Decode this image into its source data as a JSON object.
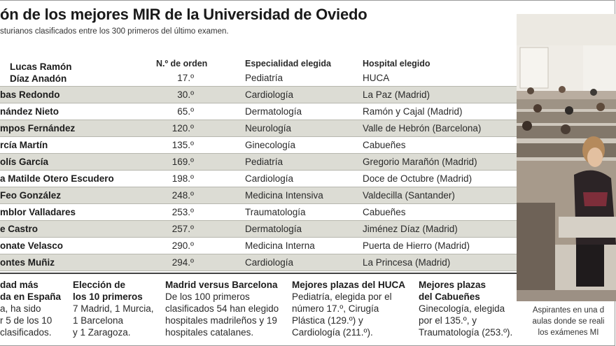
{
  "header": {
    "title": "ón de los mejores MIR de la Universidad de Oviedo",
    "subtitle": "sturianos clasificados entre los 300 primeros del último examen."
  },
  "columns": {
    "order": "N.º de orden",
    "specialty": "Especialidad elegida",
    "hospital": "Hospital elegido"
  },
  "first_row": {
    "name_line1": "Lucas Ramón",
    "name_line2": "Díaz Anadón",
    "order": "17.º",
    "specialty": "Pediatría",
    "hospital": "HUCA"
  },
  "rows": [
    {
      "name": "bas Redondo",
      "order": "30.º",
      "specialty": "Cardiología",
      "hospital": "La Paz (Madrid)"
    },
    {
      "name": "nández Nieto",
      "order": "65.º",
      "specialty": "Dermatología",
      "hospital": "Ramón y Cajal (Madrid)"
    },
    {
      "name": "mpos Fernández",
      "order": "120.º",
      "specialty": "Neurología",
      "hospital": "Valle de Hebrón (Barcelona)"
    },
    {
      "name": "rcía Martín",
      "order": "135.º",
      "specialty": "Ginecología",
      "hospital": "Cabueñes"
    },
    {
      "name": "olís García",
      "order": "169.º",
      "specialty": "Pediatría",
      "hospital": "Gregorio Marañón (Madrid)"
    },
    {
      "name": "a Matilde Otero Escudero",
      "order": "198.º",
      "specialty": "Cardiología",
      "hospital": "Doce de Octubre (Madrid)"
    },
    {
      "name": "Feo González",
      "order": "248.º",
      "specialty": "Medicina Intensiva",
      "hospital": "Valdecilla (Santander)"
    },
    {
      "name": "mblor Valladares",
      "order": "253.º",
      "specialty": "Traumatología",
      "hospital": "Cabueñes"
    },
    {
      "name": "e Castro",
      "order": "257.º",
      "specialty": "Dermatología",
      "hospital": "Jiménez Díaz (Madrid)"
    },
    {
      "name": "onate Velasco",
      "order": "290.º",
      "specialty": "Medicina Interna",
      "hospital": "Puerta de Hierro (Madrid)"
    },
    {
      "name": "ontes Muñiz",
      "order": "294.º",
      "specialty": "Cardiología",
      "hospital": "La Princesa (Madrid)"
    }
  ],
  "boxes": [
    {
      "heading": [
        "dad más",
        "da en España"
      ],
      "body": [
        "a, ha sido",
        "r 5 de los 10",
        "clasificados."
      ]
    },
    {
      "heading": [
        "Elección de",
        "los 10 primeros"
      ],
      "body": [
        "7 Madrid, 1 Murcia,",
        "1 Barcelona",
        "y 1 Zaragoza."
      ]
    },
    {
      "heading": [
        "Madrid versus Barcelona"
      ],
      "body": [
        "De los 100 primeros",
        "clasificados 54 han elegido",
        "hospitales madrileños y 19",
        "hospitales catalanes."
      ]
    },
    {
      "heading": [
        "Mejores plazas del HUCA"
      ],
      "body": [
        "Pediatría, elegida por el",
        "número 17.º, Cirugía",
        "Plástica (129.º) y",
        "Cardiología (211.º)."
      ]
    },
    {
      "heading": [
        "Mejores plazas",
        "del Cabueñes"
      ],
      "body": [
        "Ginecología, elegida",
        "por el 135.º, y",
        "Traumatología (253.º)."
      ]
    }
  ],
  "caption": [
    "Aspirantes en una d",
    "aulas donde se reali",
    "los exámenes MI"
  ]
}
